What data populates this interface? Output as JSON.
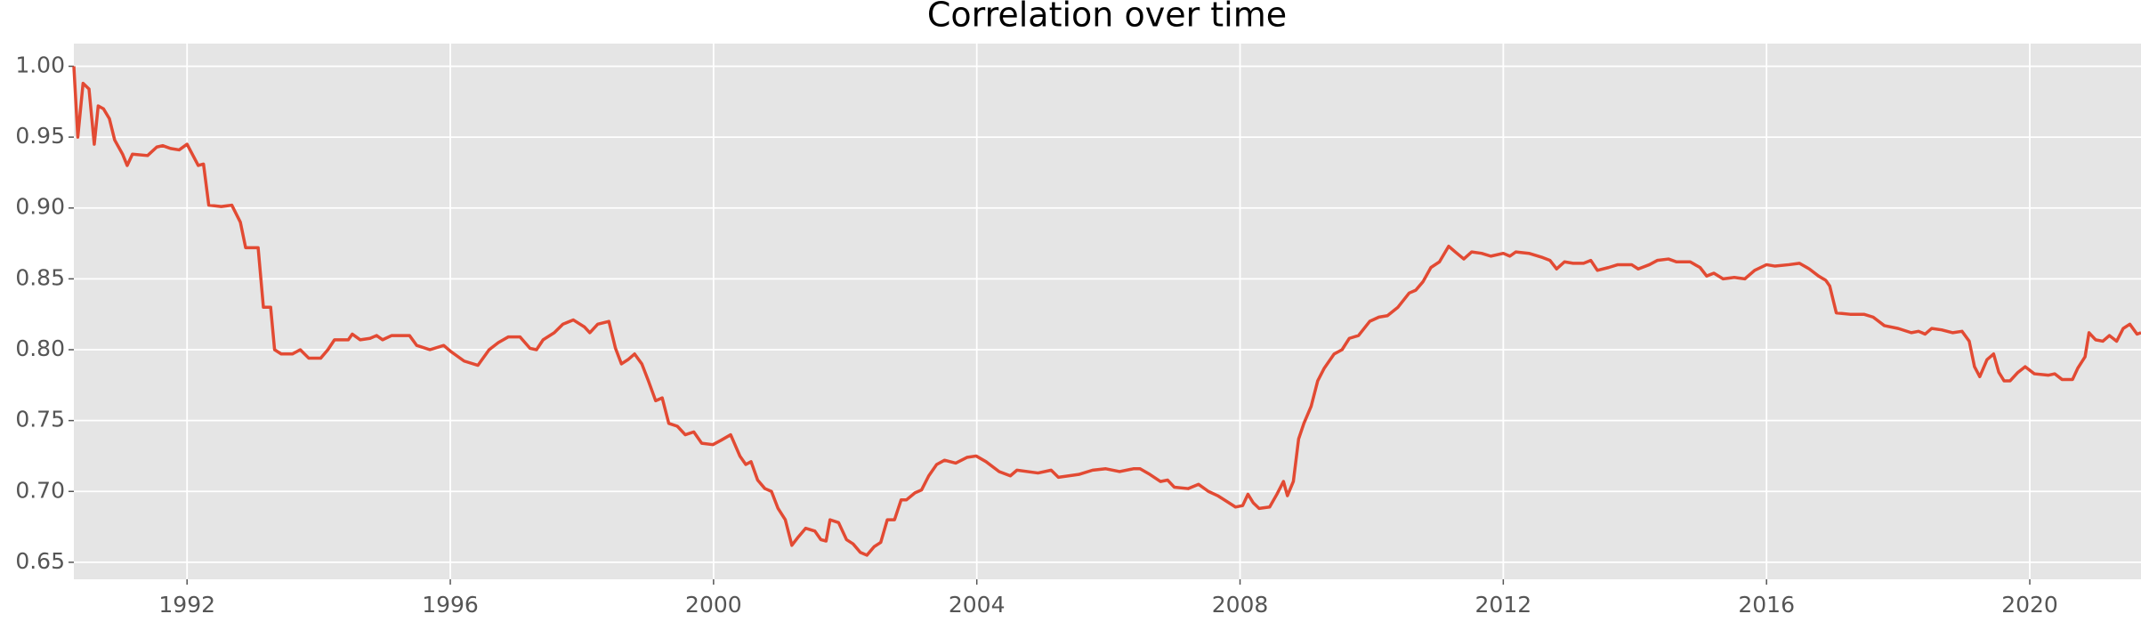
{
  "chart_data": {
    "type": "line",
    "title": "Correlation over time",
    "x": [
      1990.28,
      1990.34,
      1990.42,
      1990.51,
      1990.59,
      1990.65,
      1990.73,
      1990.82,
      1990.9,
      1991.02,
      1991.09,
      1991.17,
      1991.4,
      1991.54,
      1991.63,
      1991.75,
      1991.88,
      1992.0,
      1992.17,
      1992.25,
      1992.33,
      1992.52,
      1992.68,
      1992.81,
      1992.89,
      1993.08,
      1993.16,
      1993.27,
      1993.33,
      1993.43,
      1993.6,
      1993.72,
      1993.85,
      1994.03,
      1994.14,
      1994.24,
      1994.45,
      1994.51,
      1994.63,
      1994.78,
      1994.88,
      1994.97,
      1995.11,
      1995.38,
      1995.49,
      1995.69,
      1995.9,
      1996.0,
      1996.21,
      1996.42,
      1996.59,
      1996.73,
      1996.88,
      1997.06,
      1997.21,
      1997.31,
      1997.41,
      1997.58,
      1997.71,
      1997.87,
      1998.04,
      1998.12,
      1998.24,
      1998.41,
      1998.51,
      1998.6,
      1998.7,
      1998.8,
      1998.91,
      1999.01,
      1999.12,
      1999.22,
      1999.32,
      1999.45,
      1999.57,
      1999.7,
      1999.82,
      1999.99,
      2000.11,
      2000.26,
      2000.4,
      2000.49,
      2000.57,
      2000.67,
      2000.78,
      2000.88,
      2000.98,
      2001.09,
      2001.19,
      2001.29,
      2001.4,
      2001.54,
      2001.63,
      2001.71,
      2001.77,
      2001.9,
      2002.02,
      2002.12,
      2002.23,
      2002.33,
      2002.44,
      2002.54,
      2002.64,
      2002.75,
      2002.85,
      2002.93,
      2003.06,
      2003.16,
      2003.27,
      2003.39,
      2003.51,
      2003.68,
      2003.85,
      2003.99,
      2004.14,
      2004.34,
      2004.51,
      2004.61,
      2004.93,
      2005.13,
      2005.24,
      2005.55,
      2005.76,
      2005.96,
      2006.17,
      2006.38,
      2006.48,
      2006.63,
      2006.79,
      2006.9,
      2007.0,
      2007.21,
      2007.37,
      2007.52,
      2007.66,
      2007.83,
      2007.93,
      2008.04,
      2008.12,
      2008.2,
      2008.29,
      2008.45,
      2008.56,
      2008.66,
      2008.72,
      2008.81,
      2008.89,
      2008.97,
      2009.08,
      2009.18,
      2009.28,
      2009.43,
      2009.55,
      2009.66,
      2009.8,
      2009.97,
      2010.11,
      2010.24,
      2010.4,
      2010.57,
      2010.67,
      2010.78,
      2010.9,
      2011.03,
      2011.17,
      2011.27,
      2011.4,
      2011.52,
      2011.67,
      2011.81,
      2012.0,
      2012.1,
      2012.19,
      2012.39,
      2012.6,
      2012.71,
      2012.81,
      2012.93,
      2013.06,
      2013.22,
      2013.33,
      2013.43,
      2013.6,
      2013.74,
      2013.95,
      2014.05,
      2014.22,
      2014.34,
      2014.51,
      2014.63,
      2014.84,
      2014.99,
      2015.09,
      2015.2,
      2015.34,
      2015.51,
      2015.67,
      2015.82,
      2016.0,
      2016.13,
      2016.34,
      2016.5,
      2016.65,
      2016.79,
      2016.9,
      2016.96,
      2017.06,
      2017.27,
      2017.48,
      2017.62,
      2017.79,
      2018.0,
      2018.2,
      2018.31,
      2018.41,
      2018.51,
      2018.66,
      2018.83,
      2018.97,
      2019.08,
      2019.16,
      2019.24,
      2019.35,
      2019.45,
      2019.53,
      2019.61,
      2019.7,
      2019.82,
      2019.93,
      2020.07,
      2020.28,
      2020.38,
      2020.49,
      2020.65,
      2020.73,
      2020.84,
      2020.9,
      2021.0,
      2021.11,
      2021.21,
      2021.32,
      2021.42,
      2021.52,
      2021.63,
      2021.69
    ],
    "series": [
      {
        "name": "Correlation",
        "color": "#e24a33",
        "values": [
          1.0,
          0.95,
          0.988,
          0.984,
          0.945,
          0.972,
          0.97,
          0.963,
          0.948,
          0.938,
          0.93,
          0.938,
          0.937,
          0.943,
          0.944,
          0.942,
          0.941,
          0.945,
          0.93,
          0.931,
          0.902,
          0.901,
          0.902,
          0.89,
          0.872,
          0.872,
          0.83,
          0.83,
          0.8,
          0.797,
          0.797,
          0.8,
          0.794,
          0.794,
          0.8,
          0.807,
          0.807,
          0.811,
          0.807,
          0.808,
          0.81,
          0.807,
          0.81,
          0.81,
          0.803,
          0.8,
          0.803,
          0.799,
          0.792,
          0.789,
          0.8,
          0.805,
          0.809,
          0.809,
          0.801,
          0.8,
          0.807,
          0.812,
          0.818,
          0.821,
          0.816,
          0.812,
          0.818,
          0.82,
          0.801,
          0.79,
          0.793,
          0.797,
          0.79,
          0.778,
          0.764,
          0.766,
          0.748,
          0.746,
          0.74,
          0.742,
          0.734,
          0.733,
          0.736,
          0.74,
          0.725,
          0.719,
          0.721,
          0.708,
          0.702,
          0.7,
          0.688,
          0.68,
          0.662,
          0.668,
          0.674,
          0.672,
          0.666,
          0.665,
          0.68,
          0.678,
          0.666,
          0.663,
          0.657,
          0.655,
          0.661,
          0.664,
          0.68,
          0.68,
          0.694,
          0.694,
          0.699,
          0.701,
          0.711,
          0.719,
          0.722,
          0.72,
          0.724,
          0.725,
          0.721,
          0.714,
          0.711,
          0.715,
          0.713,
          0.715,
          0.71,
          0.712,
          0.715,
          0.716,
          0.714,
          0.716,
          0.716,
          0.712,
          0.707,
          0.708,
          0.703,
          0.702,
          0.705,
          0.7,
          0.697,
          0.692,
          0.689,
          0.69,
          0.698,
          0.692,
          0.688,
          0.689,
          0.698,
          0.707,
          0.697,
          0.707,
          0.737,
          0.748,
          0.76,
          0.778,
          0.787,
          0.797,
          0.8,
          0.808,
          0.81,
          0.82,
          0.823,
          0.824,
          0.83,
          0.84,
          0.842,
          0.848,
          0.858,
          0.862,
          0.873,
          0.869,
          0.864,
          0.869,
          0.868,
          0.866,
          0.868,
          0.866,
          0.869,
          0.868,
          0.865,
          0.863,
          0.857,
          0.862,
          0.861,
          0.861,
          0.863,
          0.856,
          0.858,
          0.86,
          0.86,
          0.857,
          0.86,
          0.863,
          0.864,
          0.862,
          0.862,
          0.858,
          0.852,
          0.854,
          0.85,
          0.851,
          0.85,
          0.856,
          0.86,
          0.859,
          0.86,
          0.861,
          0.857,
          0.852,
          0.849,
          0.845,
          0.826,
          0.825,
          0.825,
          0.823,
          0.817,
          0.815,
          0.812,
          0.813,
          0.811,
          0.815,
          0.814,
          0.812,
          0.813,
          0.806,
          0.788,
          0.781,
          0.793,
          0.797,
          0.784,
          0.778,
          0.778,
          0.784,
          0.788,
          0.783,
          0.782,
          0.783,
          0.779,
          0.779,
          0.787,
          0.795,
          0.812,
          0.807,
          0.806,
          0.81,
          0.806,
          0.815,
          0.818,
          0.811,
          0.812
        ]
      }
    ],
    "xlim": [
      1990.28,
      2021.69
    ],
    "xticks": [
      1992,
      1996,
      2000,
      2004,
      2008,
      2012,
      2016,
      2020
    ],
    "ylim": [
      0.638,
      1.016
    ],
    "yticks": [
      {
        "value": 0.65,
        "label": "0.65"
      },
      {
        "value": 0.7,
        "label": "0.70"
      },
      {
        "value": 0.75,
        "label": "0.75"
      },
      {
        "value": 0.8,
        "label": "0.80"
      },
      {
        "value": 0.85,
        "label": "0.85"
      },
      {
        "value": 0.9,
        "label": "0.90"
      },
      {
        "value": 0.95,
        "label": "0.95"
      },
      {
        "value": 1.0,
        "label": "1.00"
      }
    ],
    "grid": true
  }
}
